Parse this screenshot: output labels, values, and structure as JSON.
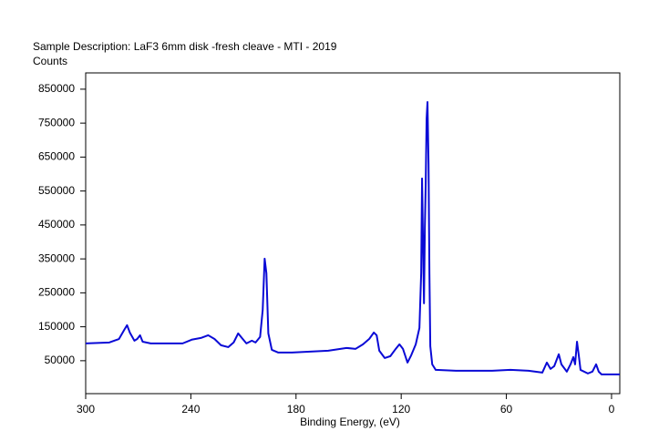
{
  "chart_data": {
    "type": "line",
    "title": "Sample Description:  LaF3 6mm disk -fresh cleave - MTI - 2019",
    "y_label": "Counts",
    "x_label": "Binding Energy, (eV)",
    "xlim": [
      300,
      -4.7
    ],
    "ylim": [
      -47000,
      898000
    ],
    "xticks": [
      300,
      240,
      180,
      120,
      60,
      0
    ],
    "yticks": [
      50000,
      150000,
      250000,
      350000,
      450000,
      550000,
      650000,
      750000,
      850000
    ],
    "x": [
      300,
      286.5,
      281,
      278,
      276.4,
      274.8,
      272.2,
      270.6,
      269,
      267.5,
      262.9,
      244.7,
      239.5,
      234.3,
      230.1,
      226.5,
      222.8,
      218.7,
      215.6,
      213,
      210.9,
      208.3,
      205.2,
      203.1,
      200.5,
      199,
      197.9,
      196.9,
      195.8,
      193.8,
      190.1,
      182.3,
      161.6,
      151.2,
      146,
      141.8,
      138.2,
      135.6,
      134,
      132.5,
      129.4,
      126.2,
      123.1,
      121,
      119,
      116.4,
      114.3,
      111.7,
      109.6,
      108.6,
      108.1,
      107,
      106.5,
      106,
      105.5,
      105,
      104.4,
      103.9,
      103.4,
      102.3,
      100.3,
      88.8,
      68.1,
      57.7,
      47.3,
      39.5,
      36.9,
      34.8,
      32.7,
      30.1,
      28.6,
      25.5,
      23.4,
      21.8,
      20.8,
      19.7,
      18.7,
      17.7,
      13.5,
      10.9,
      8.8,
      7.3,
      5.7,
      -4.7
    ],
    "series": [
      {
        "color": "#0a0ad6",
        "values": [
          101000,
          103700,
          114000,
          141000,
          154700,
          133000,
          109000,
          114000,
          125000,
          106000,
          101000,
          101000,
          112000,
          117000,
          125000,
          114000,
          95600,
          90000,
          103700,
          130500,
          117000,
          101000,
          109000,
          103700,
          120000,
          200000,
          350700,
          307700,
          130500,
          82000,
          74000,
          74000,
          79500,
          87600,
          85000,
          98300,
          114400,
          133000,
          125000,
          79500,
          58000,
          63400,
          85000,
          98300,
          85000,
          44600,
          66000,
          98300,
          146600,
          307700,
          587000,
          219000,
          442000,
          577000,
          764000,
          812000,
          630000,
          307700,
          93000,
          39300,
          23000,
          20500,
          20500,
          23000,
          20500,
          15000,
          44600,
          25800,
          34000,
          69000,
          39300,
          17800,
          39300,
          60700,
          39300,
          106000,
          66000,
          23000,
          12400,
          17800,
          39300,
          17800,
          9700,
          9700
        ]
      }
    ]
  }
}
